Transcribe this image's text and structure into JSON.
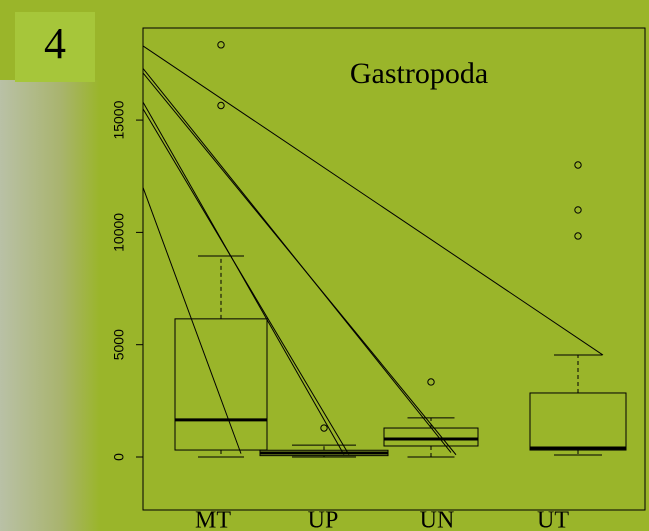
{
  "panel_label": "4",
  "chart_data": {
    "type": "box",
    "title": "Gastropoda",
    "categories": [
      "MT",
      "UP",
      "UN",
      "UT"
    ],
    "boxes": [
      {
        "whisker_low": 0,
        "q1": 310,
        "median": 1650,
        "q3": 6150,
        "whisker_high": 8950,
        "outliers": [
          15650,
          18350
        ]
      },
      {
        "whisker_low": 0,
        "q1": 60,
        "median": 180,
        "q3": 300,
        "whisker_high": 530,
        "outliers": [
          1290
        ]
      },
      {
        "whisker_low": 0,
        "q1": 490,
        "median": 800,
        "q3": 1290,
        "whisker_high": 1740,
        "outliers": [
          3340
        ]
      },
      {
        "whisker_low": 90,
        "q1": 310,
        "median": 400,
        "q3": 2850,
        "whisker_high": 4540,
        "outliers": [
          9840,
          11000,
          13000
        ]
      }
    ],
    "lines": [
      {
        "start": 18300,
        "end": 4540,
        "target": "UT"
      },
      {
        "start": 17300,
        "end": 200,
        "target": "UN"
      },
      {
        "start": 17100,
        "end": 100,
        "target": "UN"
      },
      {
        "start": 15800,
        "end": 100,
        "target": "UP"
      },
      {
        "start": 15500,
        "end": 100,
        "target": "UP"
      },
      {
        "start": 12000,
        "end": 150,
        "target": "MT"
      }
    ],
    "ylim": [
      -2360,
      19100
    ],
    "yticks": [
      0,
      5000,
      10000,
      15000
    ]
  }
}
